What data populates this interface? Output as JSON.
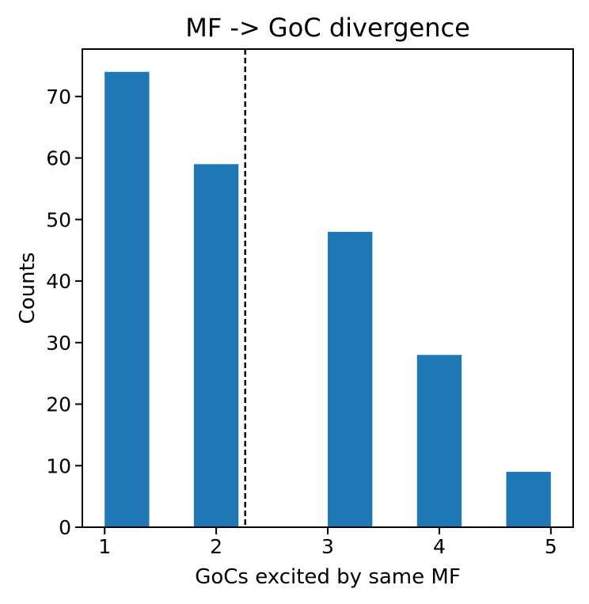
{
  "chart_data": {
    "type": "bar",
    "title": "MF -> GoC divergence",
    "xlabel": "GoCs excited by same MF",
    "ylabel": "Counts",
    "xlim": [
      0.8,
      5.2
    ],
    "ylim": [
      0,
      77.7
    ],
    "xticks": [
      1,
      2,
      3,
      4,
      5
    ],
    "yticks": [
      0,
      10,
      20,
      30,
      40,
      50,
      60,
      70
    ],
    "bars": [
      {
        "x_start": 1.0,
        "x_end": 1.4,
        "value": 74
      },
      {
        "x_start": 1.8,
        "x_end": 2.2,
        "value": 59
      },
      {
        "x_start": 2.6,
        "x_end": 3.0,
        "value": 0
      },
      {
        "x_start": 3.0,
        "x_end": 3.4,
        "value": 48
      },
      {
        "x_start": 3.8,
        "x_end": 4.2,
        "value": 28
      },
      {
        "x_start": 4.6,
        "x_end": 5.0,
        "value": 9
      }
    ],
    "vline": {
      "x": 2.26,
      "style": "dashed",
      "color": "#000000"
    },
    "bar_color": "#1f77b4",
    "grid": false
  }
}
